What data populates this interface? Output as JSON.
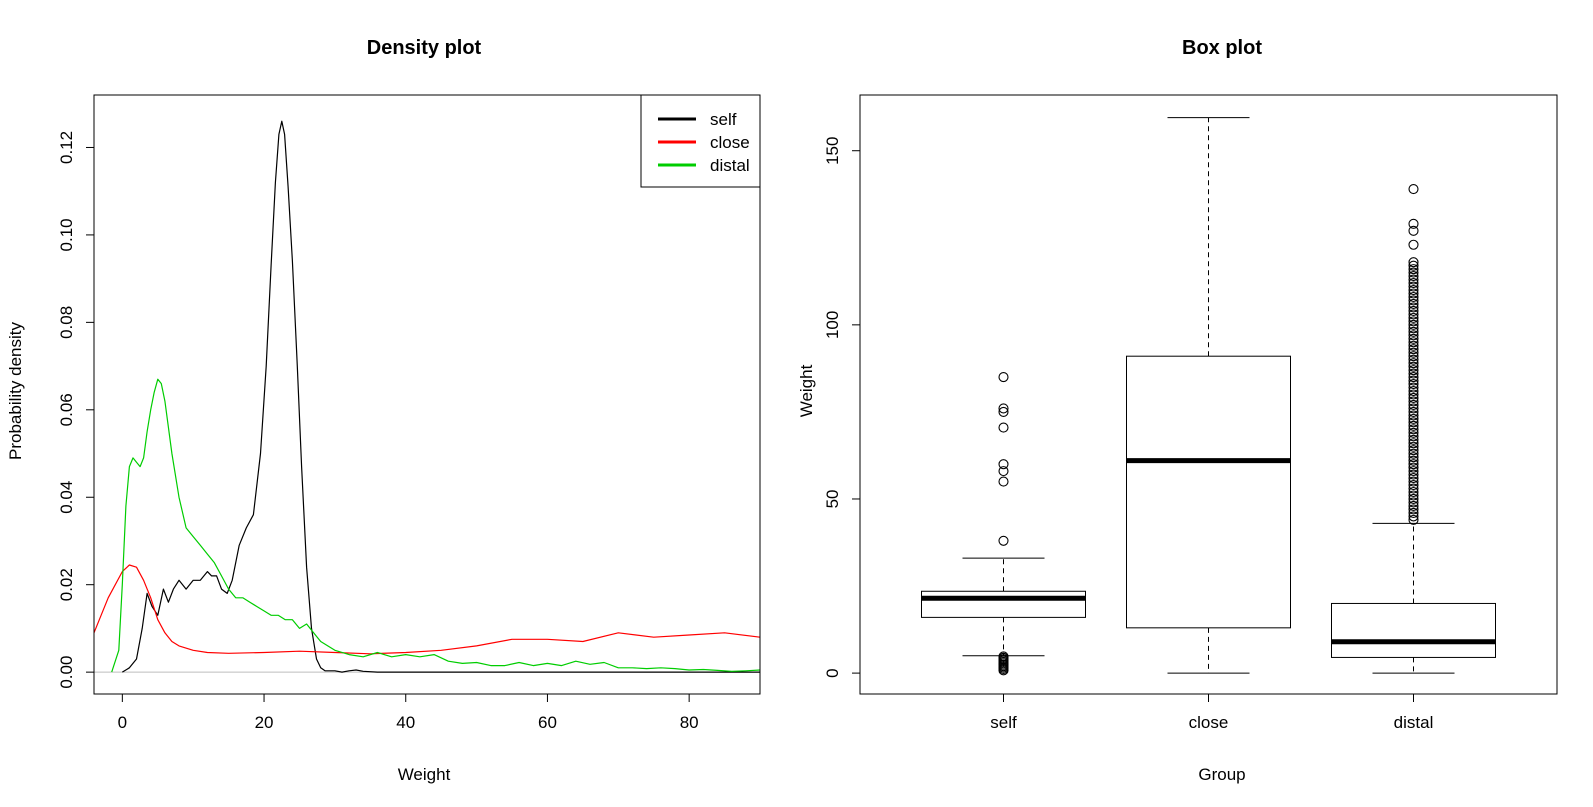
{
  "chart_data": [
    {
      "type": "line",
      "title": "Density plot",
      "xlabel": "Weight",
      "ylabel": "Probability density",
      "xlim": [
        -4,
        90
      ],
      "ylim": [
        -0.005,
        0.132
      ],
      "xticks": [
        "0",
        "20",
        "40",
        "60",
        "80"
      ],
      "yticks": [
        "0.00",
        "0.02",
        "0.04",
        "0.06",
        "0.08",
        "0.10",
        "0.12"
      ],
      "legend_position": "top-right",
      "grid": false,
      "baseline_color": "#bebebe",
      "series": [
        {
          "name": "self",
          "color": "#000000",
          "x": [
            0,
            1,
            2,
            2.8,
            3.5,
            4.2,
            5,
            5.8,
            6.5,
            7.2,
            8,
            9,
            10,
            11,
            12,
            12.6,
            13.3,
            14,
            14.8,
            15.5,
            16.5,
            17.5,
            18.5,
            19.5,
            20.3,
            21,
            21.6,
            22.1,
            22.5,
            22.9,
            23.4,
            24,
            24.7,
            25.3,
            26,
            26.7,
            27.4,
            28,
            28.6,
            29.2,
            30,
            31,
            32,
            33,
            34,
            36,
            40,
            50,
            60,
            70,
            80,
            90
          ],
          "y": [
            0,
            0.001,
            0.003,
            0.01,
            0.018,
            0.015,
            0.013,
            0.019,
            0.016,
            0.019,
            0.021,
            0.019,
            0.021,
            0.021,
            0.023,
            0.022,
            0.022,
            0.019,
            0.018,
            0.021,
            0.029,
            0.033,
            0.036,
            0.05,
            0.07,
            0.093,
            0.112,
            0.123,
            0.126,
            0.123,
            0.111,
            0.094,
            0.07,
            0.047,
            0.024,
            0.01,
            0.003,
            0.001,
            0.0003,
            0.0003,
            0.0003,
            0,
            0.0003,
            0.0005,
            0.0002,
            0,
            0,
            0,
            0,
            0,
            0,
            0
          ]
        },
        {
          "name": "close",
          "color": "#ff0000",
          "x": [
            -4,
            -2,
            0,
            1,
            2,
            3,
            4,
            5,
            6,
            7,
            8,
            10,
            12,
            15,
            20,
            25,
            30,
            35,
            40,
            45,
            50,
            55,
            60,
            65,
            70,
            75,
            80,
            85,
            90
          ],
          "y": [
            0.009,
            0.017,
            0.023,
            0.0245,
            0.024,
            0.021,
            0.017,
            0.012,
            0.009,
            0.007,
            0.006,
            0.005,
            0.0045,
            0.0043,
            0.0045,
            0.0048,
            0.0045,
            0.0042,
            0.0045,
            0.005,
            0.006,
            0.0075,
            0.0075,
            0.007,
            0.009,
            0.008,
            0.0085,
            0.009,
            0.008
          ]
        },
        {
          "name": "distal",
          "color": "#00cd00",
          "x": [
            -1.5,
            -0.5,
            0,
            0.5,
            1,
            1.5,
            2,
            2.5,
            3,
            3.5,
            4,
            4.5,
            5,
            5.5,
            6,
            7,
            8,
            9,
            10,
            11,
            12,
            13,
            14,
            15,
            16,
            17,
            18,
            19,
            20,
            21,
            22,
            23,
            24,
            25,
            26,
            27,
            28,
            29,
            30,
            32,
            34,
            36,
            38,
            40,
            42,
            44,
            46,
            48,
            50,
            52,
            54,
            56,
            58,
            60,
            62,
            64,
            66,
            68,
            70,
            72,
            74,
            76,
            78,
            80,
            82,
            84,
            86,
            88,
            90
          ],
          "y": [
            0,
            0.005,
            0.02,
            0.038,
            0.047,
            0.049,
            0.048,
            0.047,
            0.049,
            0.055,
            0.06,
            0.064,
            0.067,
            0.066,
            0.062,
            0.05,
            0.04,
            0.033,
            0.031,
            0.029,
            0.027,
            0.025,
            0.022,
            0.019,
            0.017,
            0.017,
            0.016,
            0.015,
            0.014,
            0.013,
            0.013,
            0.012,
            0.012,
            0.01,
            0.011,
            0.009,
            0.007,
            0.006,
            0.005,
            0.004,
            0.0035,
            0.0045,
            0.0035,
            0.004,
            0.0035,
            0.004,
            0.0025,
            0.002,
            0.0022,
            0.0015,
            0.0015,
            0.0022,
            0.0015,
            0.002,
            0.0015,
            0.0025,
            0.0018,
            0.0022,
            0.001,
            0.001,
            0.0008,
            0.001,
            0.0008,
            0.0005,
            0.0006,
            0.0004,
            0.0002,
            0.0003,
            0.0005
          ]
        }
      ]
    },
    {
      "type": "box",
      "title": "Box plot",
      "xlabel": "Group",
      "ylabel": "Weight",
      "ylim": [
        -6,
        166
      ],
      "yticks": [
        "0",
        "50",
        "100",
        "150"
      ],
      "categories": [
        "self",
        "close",
        "distal"
      ],
      "grid": false,
      "boxes": [
        {
          "name": "self",
          "whisker_low": 5,
          "q1": 16,
          "median": 21.5,
          "q3": 23.5,
          "whisker_high": 33,
          "outliers": [
            85,
            76,
            75,
            70.5,
            60,
            58,
            55,
            38,
            4.8,
            4.4,
            4,
            3.6,
            3.2,
            2.8,
            2.4,
            2,
            1.6,
            1.2,
            0.8
          ]
        },
        {
          "name": "close",
          "whisker_low": 0,
          "q1": 13,
          "median": 61,
          "q3": 91,
          "whisker_high": 159.5,
          "outliers": []
        },
        {
          "name": "distal",
          "whisker_low": 0,
          "q1": 4.5,
          "median": 9,
          "q3": 20,
          "whisker_high": 43,
          "outliers": [
            139,
            129,
            127,
            123,
            118,
            117,
            116,
            115,
            114,
            113,
            112,
            111,
            110,
            109,
            108,
            107,
            106,
            105,
            104,
            103,
            102,
            101,
            100,
            99,
            98,
            97,
            96,
            95,
            94,
            93,
            92,
            91,
            90,
            89,
            88,
            87,
            86,
            85,
            84,
            83,
            82,
            81,
            80,
            79,
            78,
            77,
            76,
            75,
            74,
            73,
            72,
            71,
            70,
            69,
            68,
            67,
            66,
            65,
            64,
            63,
            62,
            61,
            60,
            59,
            58,
            57,
            56,
            55,
            54,
            53,
            52,
            51,
            50,
            49,
            48,
            47,
            46,
            45,
            44
          ]
        }
      ]
    }
  ]
}
